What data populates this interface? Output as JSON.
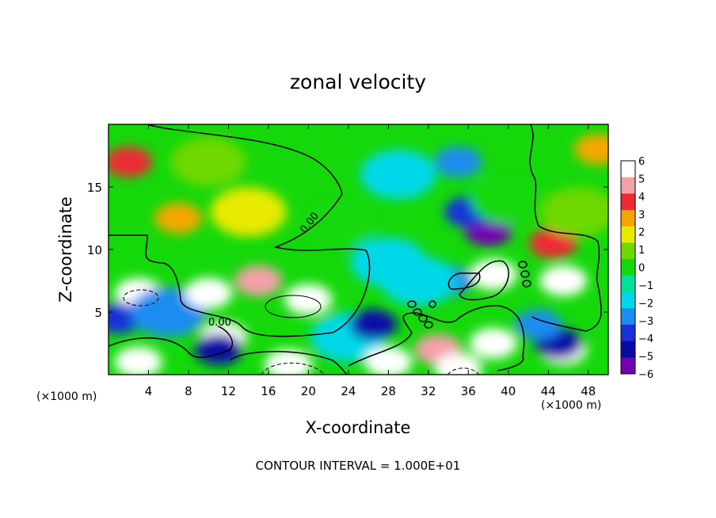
{
  "chart_data": {
    "type": "heatmap",
    "title": "zonal velocity",
    "xlabel": "X-coordinate",
    "ylabel": "Z-coordinate",
    "x_unit_left": "(×1000 m)",
    "x_unit_right": "(×1000 m)",
    "xlim": [
      0,
      50
    ],
    "ylim": [
      0,
      20
    ],
    "x_ticks": [
      4,
      8,
      12,
      16,
      20,
      24,
      28,
      32,
      36,
      40,
      44,
      48
    ],
    "y_ticks": [
      5,
      10,
      15
    ],
    "contour_label": "0.00",
    "footer": "CONTOUR INTERVAL = 1.000E+01",
    "colorbar": {
      "range": [
        -6,
        6
      ],
      "tick_labels": [
        "6",
        "5",
        "4",
        "3",
        "2",
        "1",
        "0",
        "−1",
        "−2",
        "−3",
        "−4",
        "−5",
        "−6"
      ],
      "colors": [
        "#ffffff",
        "#f4a0a8",
        "#ee2a35",
        "#f5a700",
        "#e8ea00",
        "#6ed800",
        "#14d80a",
        "#00e09a",
        "#00d8ea",
        "#1c8cf0",
        "#1830d8",
        "#0a0aa6",
        "#7300b0"
      ]
    },
    "field_features": [
      {
        "x": 2,
        "z": 17,
        "value": 4.5
      },
      {
        "x": 7,
        "z": 12.5,
        "value": 3.5
      },
      {
        "x": 14,
        "z": 13,
        "value": 2.5
      },
      {
        "x": 10,
        "z": 17,
        "value": 1.5
      },
      {
        "x": 3,
        "z": 6.5,
        "value": 7
      },
      {
        "x": 1,
        "z": 4.5,
        "value": -4
      },
      {
        "x": 6,
        "z": 5,
        "value": -2.5
      },
      {
        "x": 10,
        "z": 6.5,
        "value": 7
      },
      {
        "x": 20,
        "z": 6,
        "value": 7
      },
      {
        "x": 15,
        "z": 7.5,
        "value": 5
      },
      {
        "x": 11.5,
        "z": 3,
        "value": 7
      },
      {
        "x": 11,
        "z": 2,
        "value": -5
      },
      {
        "x": 3,
        "z": 1,
        "value": 7
      },
      {
        "x": 18,
        "z": 0.8,
        "value": 7
      },
      {
        "x": 24,
        "z": 3,
        "value": -2
      },
      {
        "x": 26.5,
        "z": 4,
        "value": -5
      },
      {
        "x": 28,
        "z": 1,
        "value": 7
      },
      {
        "x": 33,
        "z": 2,
        "value": 5
      },
      {
        "x": 38.5,
        "z": 2.5,
        "value": 7
      },
      {
        "x": 35,
        "z": 0.5,
        "value": 7
      },
      {
        "x": 38,
        "z": 11.5,
        "value": -6.5
      },
      {
        "x": 36,
        "z": 13,
        "value": -4
      },
      {
        "x": 38.5,
        "z": 8,
        "value": 7
      },
      {
        "x": 34,
        "z": 7.5,
        "value": -3
      },
      {
        "x": 35,
        "z": 17,
        "value": -3
      },
      {
        "x": 31,
        "z": 7.5,
        "value": -2
      },
      {
        "x": 45.5,
        "z": 7.5,
        "value": 7
      },
      {
        "x": 44.5,
        "z": 10.5,
        "value": 4
      },
      {
        "x": 45.5,
        "z": 2,
        "value": 7
      },
      {
        "x": 45,
        "z": 2.5,
        "value": -5
      },
      {
        "x": 43,
        "z": 4,
        "value": -3
      },
      {
        "x": 49,
        "z": 18,
        "value": 3
      },
      {
        "x": 47,
        "z": 13,
        "value": 1
      },
      {
        "x": 23,
        "z": 12,
        "value": 0
      },
      {
        "x": 28,
        "z": 9,
        "value": -1.5
      },
      {
        "x": 29,
        "z": 16,
        "value": -1.5
      },
      {
        "x": 40,
        "z": 14,
        "value": 0.5
      }
    ]
  }
}
